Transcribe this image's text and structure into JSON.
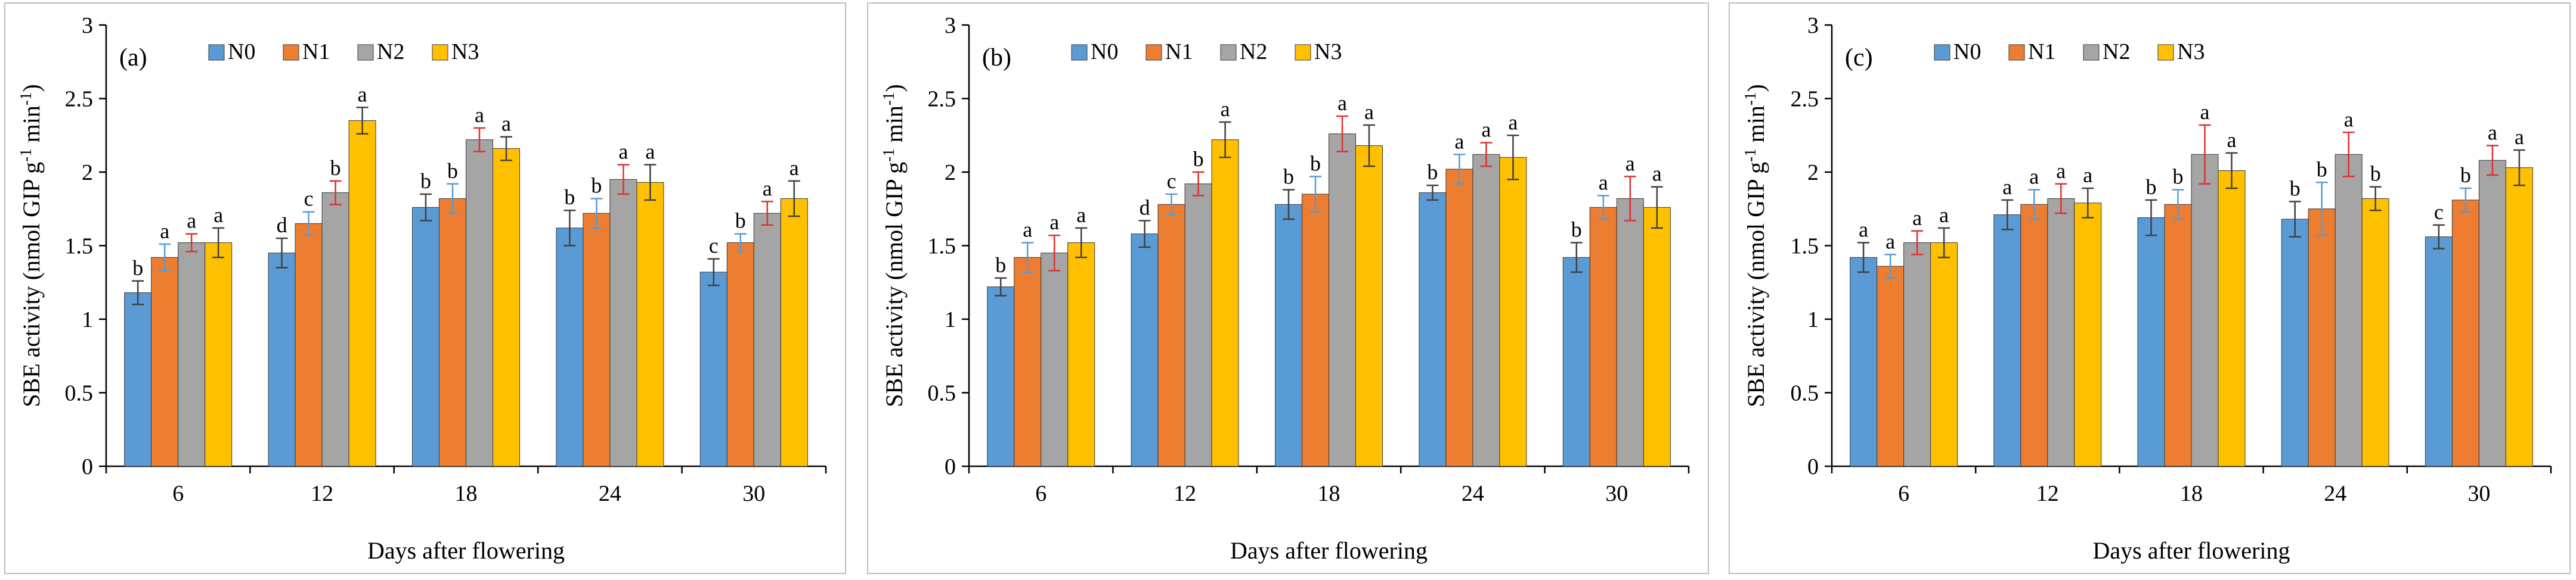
{
  "chart_data": [
    {
      "type": "bar",
      "panel_label": "(a)",
      "categories": [
        "6",
        "12",
        "18",
        "24",
        "30"
      ],
      "series": [
        {
          "name": "N0",
          "values": [
            1.18,
            1.45,
            1.76,
            1.62,
            1.32
          ],
          "errors": [
            0.08,
            0.1,
            0.09,
            0.12,
            0.09
          ],
          "letters": [
            "b",
            "d",
            "b",
            "b",
            "c"
          ]
        },
        {
          "name": "N1",
          "values": [
            1.42,
            1.65,
            1.82,
            1.72,
            1.52
          ],
          "errors": [
            0.09,
            0.08,
            0.1,
            0.1,
            0.06
          ],
          "letters": [
            "a",
            "c",
            "b",
            "b",
            "b"
          ]
        },
        {
          "name": "N2",
          "values": [
            1.52,
            1.86,
            2.22,
            1.95,
            1.72
          ],
          "errors": [
            0.06,
            0.08,
            0.08,
            0.1,
            0.08
          ],
          "letters": [
            "a",
            "b",
            "a",
            "a",
            "a"
          ]
        },
        {
          "name": "N3",
          "values": [
            1.52,
            2.35,
            2.16,
            1.93,
            1.82
          ],
          "errors": [
            0.1,
            0.09,
            0.08,
            0.12,
            0.12
          ],
          "letters": [
            "a",
            "a",
            "a",
            "a",
            "a"
          ]
        }
      ],
      "xlabel": "Days after flowering",
      "ylabel": "SBE activity (nmol GIP g-1 min-1)",
      "ylim": [
        0,
        3
      ],
      "yticks": [
        "0",
        "0.5",
        "1",
        "1.5",
        "2",
        "2.5",
        "3"
      ]
    },
    {
      "type": "bar",
      "panel_label": "(b)",
      "categories": [
        "6",
        "12",
        "18",
        "24",
        "30"
      ],
      "series": [
        {
          "name": "N0",
          "values": [
            1.22,
            1.58,
            1.78,
            1.86,
            1.42
          ],
          "errors": [
            0.06,
            0.09,
            0.1,
            0.05,
            0.1
          ],
          "letters": [
            "b",
            "d",
            "b",
            "b",
            "b"
          ]
        },
        {
          "name": "N1",
          "values": [
            1.42,
            1.78,
            1.85,
            2.02,
            1.76
          ],
          "errors": [
            0.1,
            0.07,
            0.12,
            0.1,
            0.08
          ],
          "letters": [
            "a",
            "c",
            "b",
            "a",
            "a"
          ]
        },
        {
          "name": "N2",
          "values": [
            1.45,
            1.92,
            2.26,
            2.12,
            1.82
          ],
          "errors": [
            0.12,
            0.08,
            0.12,
            0.08,
            0.15
          ],
          "letters": [
            "a",
            "b",
            "a",
            "a",
            "a"
          ]
        },
        {
          "name": "N3",
          "values": [
            1.52,
            2.22,
            2.18,
            2.1,
            1.76
          ],
          "errors": [
            0.1,
            0.12,
            0.14,
            0.15,
            0.14
          ],
          "letters": [
            "a",
            "a",
            "a",
            "a",
            "a"
          ]
        }
      ],
      "xlabel": "Days after flowering",
      "ylabel": "SBE activity (nmol GIP g-1 min-1)",
      "ylim": [
        0,
        3
      ],
      "yticks": [
        "0",
        "0.5",
        "1",
        "1.5",
        "2",
        "2.5",
        "3"
      ]
    },
    {
      "type": "bar",
      "panel_label": "(c)",
      "categories": [
        "6",
        "12",
        "18",
        "24",
        "30"
      ],
      "series": [
        {
          "name": "N0",
          "values": [
            1.42,
            1.71,
            1.69,
            1.68,
            1.56
          ],
          "errors": [
            0.1,
            0.1,
            0.12,
            0.12,
            0.08
          ],
          "letters": [
            "a",
            "a",
            "b",
            "b",
            "c"
          ]
        },
        {
          "name": "N1",
          "values": [
            1.36,
            1.78,
            1.78,
            1.75,
            1.81
          ],
          "errors": [
            0.08,
            0.1,
            0.1,
            0.18,
            0.08
          ],
          "letters": [
            "a",
            "a",
            "b",
            "b",
            "b"
          ]
        },
        {
          "name": "N2",
          "values": [
            1.52,
            1.82,
            2.12,
            2.12,
            2.08
          ],
          "errors": [
            0.08,
            0.1,
            0.2,
            0.15,
            0.1
          ],
          "letters": [
            "a",
            "a",
            "a",
            "a",
            "a"
          ]
        },
        {
          "name": "N3",
          "values": [
            1.52,
            1.79,
            2.01,
            1.82,
            2.03
          ],
          "errors": [
            0.1,
            0.1,
            0.12,
            0.08,
            0.12
          ],
          "letters": [
            "a",
            "a",
            "a",
            "b",
            "a"
          ]
        }
      ],
      "xlabel": "Days after flowering",
      "ylabel": "SBE activity (nmol GIP g-1 min-1)",
      "ylim": [
        0,
        3
      ],
      "yticks": [
        "0",
        "0.5",
        "1",
        "1.5",
        "2",
        "2.5",
        "3"
      ]
    }
  ],
  "colors": {
    "N0": "#5b9bd5",
    "N1": "#ed7d31",
    "N2": "#a5a5a5",
    "N3": "#ffc000",
    "err_N0": "#404040",
    "err_N1": "#5b9bd5",
    "err_N2": "#e03030",
    "err_N3": "#404040"
  },
  "ylabel_parts": {
    "pre": "SBE activity (nmol GIP g",
    "sup1": "-1",
    "mid": " min",
    "sup2": "-1",
    "post": ")"
  }
}
